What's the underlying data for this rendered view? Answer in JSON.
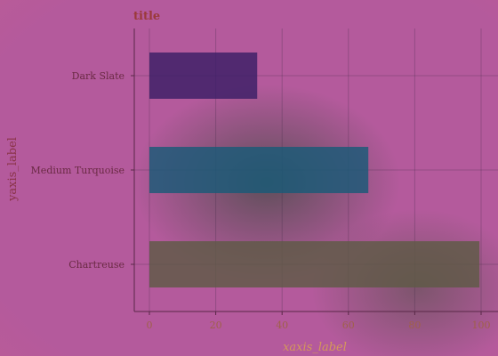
{
  "chart_data": {
    "type": "bar",
    "orientation": "horizontal",
    "title": "title",
    "xlabel": "xaxis_label",
    "ylabel": "yaxis_label",
    "categories": [
      "Dark Slate",
      "Medium Turquoise",
      "Chartreuse"
    ],
    "values": [
      32.5,
      66,
      99.5
    ],
    "colors": [
      "#3b1f66",
      "#1a5a78",
      "#5e5a45"
    ],
    "xlim": [
      -4.5,
      104.5
    ],
    "xticks": [
      "0",
      "20",
      "40",
      "60",
      "80",
      "100"
    ],
    "grid": true,
    "legend": "none"
  }
}
